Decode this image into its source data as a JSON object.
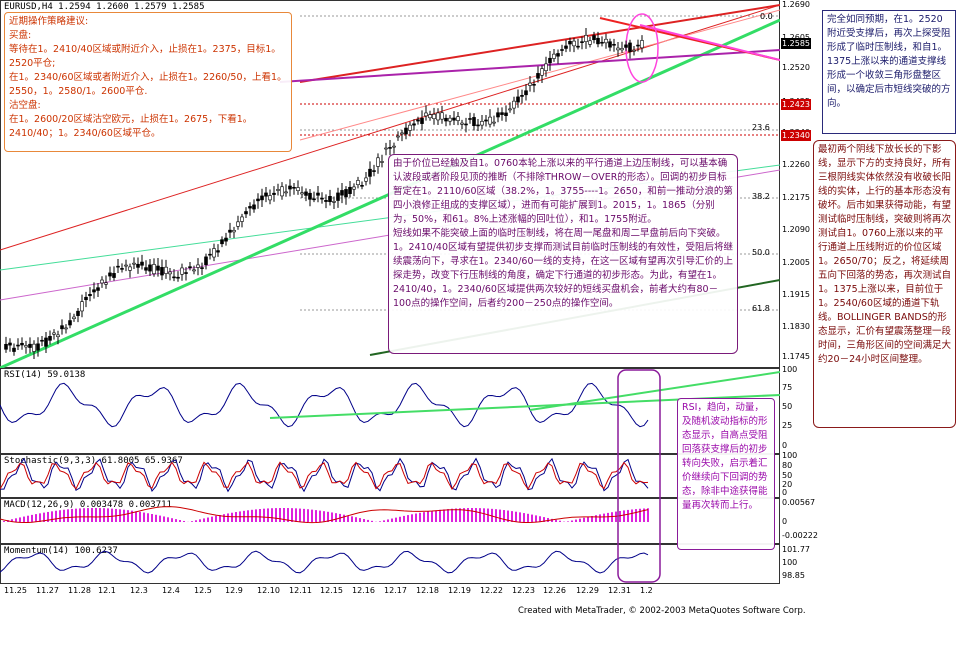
{
  "window": {
    "symbol_title": "EURUSD,H4  1.2594 1.2600 1.2579 1.2585",
    "footer": "Created with MetaTrader, © 2002-2003 MetaQuotes Software Corp."
  },
  "price_axis": {
    "ticks": [
      "1.2690",
      "1.2605",
      "1.2520",
      "1.2425",
      "1.2340",
      "1.2260",
      "1.2175",
      "1.2090",
      "1.2005",
      "1.1915",
      "1.1830",
      "1.1745"
    ],
    "current_price": "1.2585",
    "level_1": "1.2423",
    "level_2": "1.2340",
    "colors": {
      "current": "#000000",
      "levels": "#cc0000"
    }
  },
  "fib_levels": [
    "0.0",
    "23.6",
    "38.2",
    "50.0",
    "61.8"
  ],
  "indicators": {
    "rsi": {
      "label": "RSI(14)  59.0138",
      "scale": [
        "100",
        "75",
        "50",
        "25",
        "0"
      ]
    },
    "stochastic": {
      "label": "Stochastic(9,3,3)  61.8005  65.9367",
      "scale": [
        "100",
        "80",
        "50",
        "20",
        "0"
      ]
    },
    "macd": {
      "label": "MACD(12,26,9)  0.003478  0.003711",
      "scale": [
        "0.00567",
        "0",
        "-0.00222"
      ]
    },
    "momentum": {
      "label": "Momentum(14)  100.6237",
      "scale": [
        "101.77",
        "100",
        "98.85"
      ]
    }
  },
  "x_axis": [
    "11.25",
    "11.27",
    "11.28",
    "12.1",
    "12.3",
    "12.4",
    "12.5",
    "12.9",
    "12.10",
    "12.11",
    "12.15",
    "12.16",
    "12.17",
    "12.18",
    "12.19",
    "12.22",
    "12.23",
    "12.26",
    "12.29",
    "12.31",
    "1.2"
  ],
  "notes": {
    "top_left": {
      "heading": "近期操作策略建议:",
      "buy_title": "买盘:",
      "buy_text_1": "等待在1。2410/40区域或附近介入，止损在1。2375，目标1。2520平仓;",
      "buy_text_2": "在1。2340/60区域或者附近介入，止损在1。2260/50，上看1。2550，1。2580/1。2600平仓.",
      "sell_title": "沽空盘:",
      "sell_text": "在1。2600/20区域沽空欧元，止损在1。2675，下看1。2410/40；1。2340/60区域平仓。"
    },
    "top_right": "完全如同预期，在1。2520附近受支撑后，再次上探受阻形成了临时压制线，和自1。1375上涨以来的通道支撑线形成一个收敛三角形盘整区间，以确定后市短线突破的方向。",
    "center": {
      "para1": "由于价位已经触及自1。0760本轮上涨以来的平行通道上边压制线，可以基本确认波段或者阶段见顶的推断（不排除THROW－OVER的形态）。回调的初步目标暂定在1。2110/60区域（38.2%，1。3755----1。2650，和前一推动分浪的第四小浪修正组成的支撑区域），进而有可能扩展到1。2015，1。1865（分别为，50%，和61。8%上述涨幅的回吐位），和1。1755附近。",
      "para2": "短线如果不能突破上面的临时压制线，将在周一尾盘和周二早盘前后向下突破。1。2410/40区域有望提供初步支撑而测试目前临时压制线的有效性，受阻后将继续震荡向下，寻求在1。2340/60一线的支持，在这一区域有望再次引导汇价的上探走势，改变下行压制线的角度，确定下行通道的初步形态。为此，有望在1。2410/40，1。2340/60区域提供两次较好的短线买盘机会，前者大约有80－100点的操作空间，后者约200－250点的操作空间。"
    },
    "right": "最初两个阴线下放长长的下影线，显示下方的支持良好，所有三根阴线实体依然没有收破长阳线的实体，上行的基本形态没有破坏。后市如果获得动能，有望测试临时压制线，突破则将再次测试自1。0760上涨以来的平行通道上压线附近的价位区域1。2650/70；反之，将延续周五向下回落的势态，再次测试自1。1375上涨以来，目前位于1。2540/60区域的通道下轨线。BOLLINGER BANDS的形态显示，汇价有望震荡整理一段时间，三角形区间的空间满足大约20－24小时区间整理。",
    "indicator": "RSI，趋向，动量，及随机波动指标的形态显示，自高点受阻回落获支撑后的初步转向失败，启示着汇价继续向下回调的势态，除非中途获得能量再次转而上行。"
  }
}
